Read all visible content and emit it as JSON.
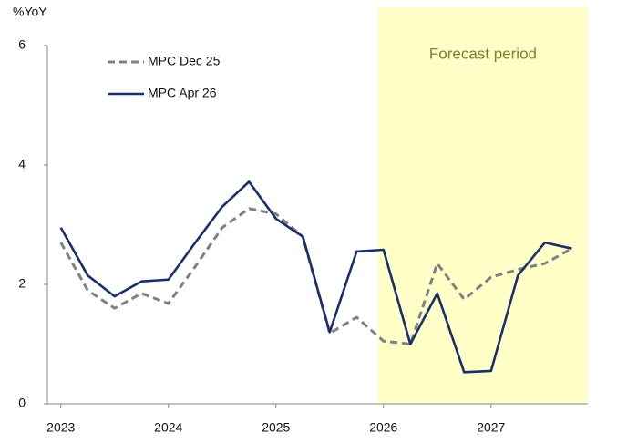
{
  "chart_data": {
    "type": "line",
    "y_unit_label": "%YoY",
    "annotation": "Forecast period",
    "forecast_range": [
      2025.95,
      2027.9
    ],
    "shade_color": "#ffffc8",
    "x": [
      2023,
      2023.25,
      2023.5,
      2023.75,
      2024,
      2024.25,
      2024.5,
      2024.75,
      2025,
      2025.25,
      2025.5,
      2025.75,
      2026,
      2026.25,
      2026.5,
      2026.75,
      2027,
      2027.25,
      2027.5,
      2027.75
    ],
    "series": [
      {
        "name": "MPC Dec 25",
        "color": "#808080",
        "dashed": true,
        "values": [
          2.7,
          1.9,
          1.6,
          1.85,
          1.68,
          2.3,
          2.95,
          3.27,
          3.18,
          2.8,
          1.18,
          1.45,
          1.05,
          1.0,
          2.35,
          1.75,
          2.12,
          2.25,
          2.35,
          2.6
        ]
      },
      {
        "name": "MPC Apr 26",
        "color": "#1a2e6b",
        "dashed": false,
        "values": [
          2.95,
          2.15,
          1.8,
          2.05,
          2.08,
          2.7,
          3.3,
          3.72,
          3.1,
          2.8,
          1.2,
          2.55,
          2.58,
          1.0,
          1.85,
          0.53,
          0.55,
          2.15,
          2.7,
          2.6
        ]
      }
    ],
    "xlim": [
      2022.875,
      2027.9
    ],
    "xticks": [
      2023,
      2024,
      2025,
      2026,
      2027
    ],
    "ylim": [
      0,
      6
    ],
    "yticks": [
      0,
      2,
      4,
      6
    ],
    "grid": false,
    "legend": "top-left"
  }
}
